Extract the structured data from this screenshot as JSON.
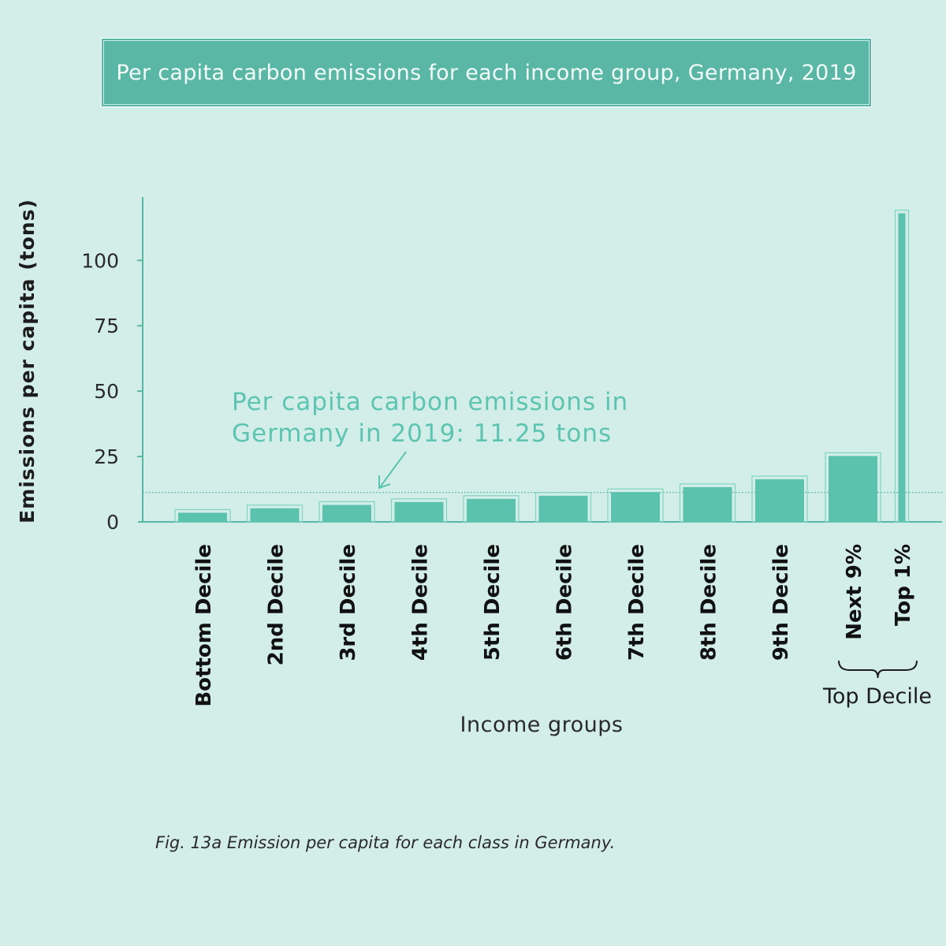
{
  "title": "Per capita carbon emissions for each income group, Germany, 2019",
  "caption": "Fig. 13a Emission per capita for each class in Germany.",
  "annotation": {
    "line1": "Per capita carbon emissions in",
    "line2": "Germany in 2019: 11.25 tons",
    "value": 11.25
  },
  "group_label": "Top Decile",
  "colors": {
    "background": "#d3eee8",
    "bar": "#5bc2ae",
    "accent": "#5ab7a5",
    "annotation_text": "#5cc4b0",
    "axis": "#5ab7a5"
  },
  "chart_data": {
    "type": "bar",
    "title": "Per capita carbon emissions for each income group, Germany, 2019",
    "xlabel": "Income groups",
    "ylabel": "Emissions per capita (tons)",
    "ylim": [
      0,
      120
    ],
    "yticks": [
      0,
      25,
      50,
      75,
      100
    ],
    "grid": false,
    "categories": [
      "Bottom Decile",
      "2nd Decile",
      "3rd Decile",
      "4th Decile",
      "5th Decile",
      "6th Decile",
      "7th Decile",
      "8th Decile",
      "9th Decile",
      "Next 9%",
      "Top 1%"
    ],
    "values": [
      3.5,
      5.2,
      6.5,
      7.6,
      8.8,
      10.0,
      11.4,
      13.3,
      16.3,
      25.2,
      118
    ],
    "reference_line": 11.25
  }
}
